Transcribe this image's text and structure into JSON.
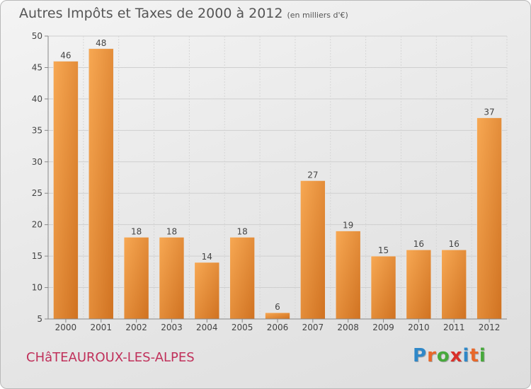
{
  "header": {
    "title": "Autres Impôts et Taxes de 2000 à 2012",
    "unit": "(en milliers d'€)"
  },
  "footer": {
    "commune": "CHâTEAUROUX-LES-ALPES",
    "logo": [
      "P",
      "r",
      "o",
      "x",
      "i",
      "t",
      "i"
    ],
    "logo_colors": [
      "#2f88c8",
      "#e8682a",
      "#47a93c",
      "#d9302a",
      "#2f88c8",
      "#e8682a",
      "#47a93c"
    ]
  },
  "chart_data": {
    "type": "bar",
    "title": "Autres Impôts et Taxes de 2000 à 2012",
    "subtitle": "(en milliers d'€)",
    "xlabel": "",
    "ylabel": "",
    "categories": [
      "2000",
      "2001",
      "2002",
      "2003",
      "2004",
      "2005",
      "2006",
      "2007",
      "2008",
      "2009",
      "2010",
      "2011",
      "2012"
    ],
    "values": [
      46,
      48,
      18,
      18,
      14,
      18,
      6,
      27,
      19,
      15,
      16,
      16,
      37
    ],
    "data_labels": [
      "46",
      "48",
      "18",
      "18",
      "14",
      "18",
      "6",
      "27",
      "19",
      "15",
      "16",
      "16",
      "37"
    ],
    "ylim": [
      5,
      50
    ],
    "yticks": [
      5,
      10,
      15,
      20,
      25,
      30,
      35,
      40,
      45,
      50
    ],
    "grid": true,
    "bar_color": "#f0953a",
    "bar_color_light": "#f7a853",
    "bar_color_dark": "#d07221"
  }
}
